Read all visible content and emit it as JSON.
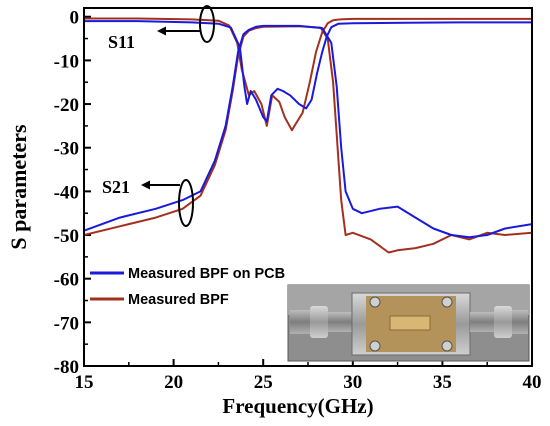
{
  "chart_data": {
    "type": "line",
    "title": "",
    "xlabel": "Frequency(GHz)",
    "ylabel": "S parameters",
    "xlim": [
      15,
      40
    ],
    "ylim": [
      -80,
      2
    ],
    "xticks": [
      15,
      20,
      25,
      30,
      35,
      40
    ],
    "yticks": [
      0,
      -10,
      -20,
      -30,
      -40,
      -50,
      -60,
      -70,
      -80
    ],
    "grid": false,
    "legend_position": "bottom-left",
    "annotations": [
      {
        "text": "S11",
        "points_to": "upper curves near 0 dB"
      },
      {
        "text": "S21",
        "points_to": "lower curves near -40 dB"
      }
    ],
    "inset_photo": "fixture-with-connectors",
    "series": [
      {
        "name": "Measured BPF on PCB",
        "color": "#1a1adb",
        "parameter": "S11",
        "x": [
          15,
          18,
          21,
          22.5,
          23.2,
          23.7,
          23.95,
          24.1,
          24.3,
          24.6,
          25.0,
          25.2,
          25.45,
          25.8,
          26.1,
          26.5,
          27.0,
          27.4,
          27.7,
          28.0,
          28.3,
          28.55,
          28.8,
          29.2,
          30,
          33,
          36,
          40
        ],
        "y": [
          -1.0,
          -1.0,
          -1.3,
          -1.6,
          -2.5,
          -7,
          -16,
          -20,
          -17,
          -19,
          -23,
          -24,
          -18,
          -16.5,
          -17,
          -18,
          -20,
          -21,
          -19,
          -13,
          -8,
          -4.5,
          -2.4,
          -1.6,
          -1.5,
          -1.4,
          -1.3,
          -1.3
        ]
      },
      {
        "name": "Measured BPF on PCB",
        "color": "#1a1adb",
        "parameter": "S21",
        "x": [
          15,
          17,
          19,
          20.5,
          21.5,
          22.3,
          22.9,
          23.3,
          23.6,
          23.9,
          24.2,
          24.6,
          25,
          27,
          28.3,
          28.8,
          29.1,
          29.35,
          29.6,
          30,
          30.5,
          31.5,
          32.5,
          33.5,
          34.5,
          35.5,
          36.5,
          37.5,
          38.5,
          40
        ],
        "y": [
          -49,
          -46,
          -44,
          -42,
          -40,
          -33,
          -25,
          -16,
          -8,
          -4,
          -3,
          -2.3,
          -2.1,
          -2.1,
          -2.6,
          -6,
          -16,
          -30,
          -40,
          -44,
          -45,
          -44,
          -43.5,
          -46,
          -48.5,
          -50,
          -50.5,
          -50,
          -48.5,
          -47.5
        ]
      },
      {
        "name": "Measured BPF",
        "color": "#a3301f",
        "parameter": "S11",
        "x": [
          15,
          18,
          21,
          22.5,
          23.1,
          23.55,
          23.8,
          24.0,
          24.2,
          24.5,
          24.9,
          25.2,
          25.5,
          25.9,
          26.2,
          26.6,
          26.9,
          27.2,
          27.6,
          27.95,
          28.3,
          28.6,
          28.9,
          29.3,
          30,
          33,
          36,
          40
        ],
        "y": [
          -0.4,
          -0.4,
          -0.6,
          -0.9,
          -2,
          -6,
          -12,
          -15,
          -18,
          -17,
          -20,
          -25,
          -18,
          -19.5,
          -23,
          -26,
          -24,
          -22,
          -15,
          -8,
          -3.5,
          -1.5,
          -0.8,
          -0.6,
          -0.5,
          -0.5,
          -0.5,
          -0.5
        ]
      },
      {
        "name": "Measured BPF",
        "color": "#a3301f",
        "parameter": "S21",
        "x": [
          15,
          17,
          19,
          20.5,
          21.5,
          22.3,
          22.9,
          23.3,
          23.6,
          23.9,
          24.2,
          24.6,
          25,
          27,
          28.2,
          28.6,
          28.9,
          29.15,
          29.35,
          29.6,
          30,
          31,
          32,
          32.5,
          33.5,
          34.5,
          35.5,
          36.5,
          37.5,
          38.5,
          40
        ],
        "y": [
          -50,
          -48,
          -46,
          -44,
          -41,
          -34,
          -26,
          -17,
          -9,
          -4.5,
          -3.2,
          -2.6,
          -2.3,
          -2.2,
          -2.5,
          -5,
          -15,
          -30,
          -42,
          -50,
          -49.5,
          -51,
          -54,
          -53.5,
          -53,
          -52,
          -50,
          -51,
          -49.5,
          -50,
          -49.5
        ]
      }
    ]
  },
  "legend": {
    "items": [
      {
        "label": "Measured BPF on PCB",
        "color": "#1a1adb"
      },
      {
        "label": "Measured BPF",
        "color": "#a3301f"
      }
    ]
  },
  "annotations": {
    "s11_label": "S11",
    "s21_label": "S21"
  },
  "labels": {
    "xlabel": "Frequency(GHz)",
    "ylabel": "S parameters"
  }
}
